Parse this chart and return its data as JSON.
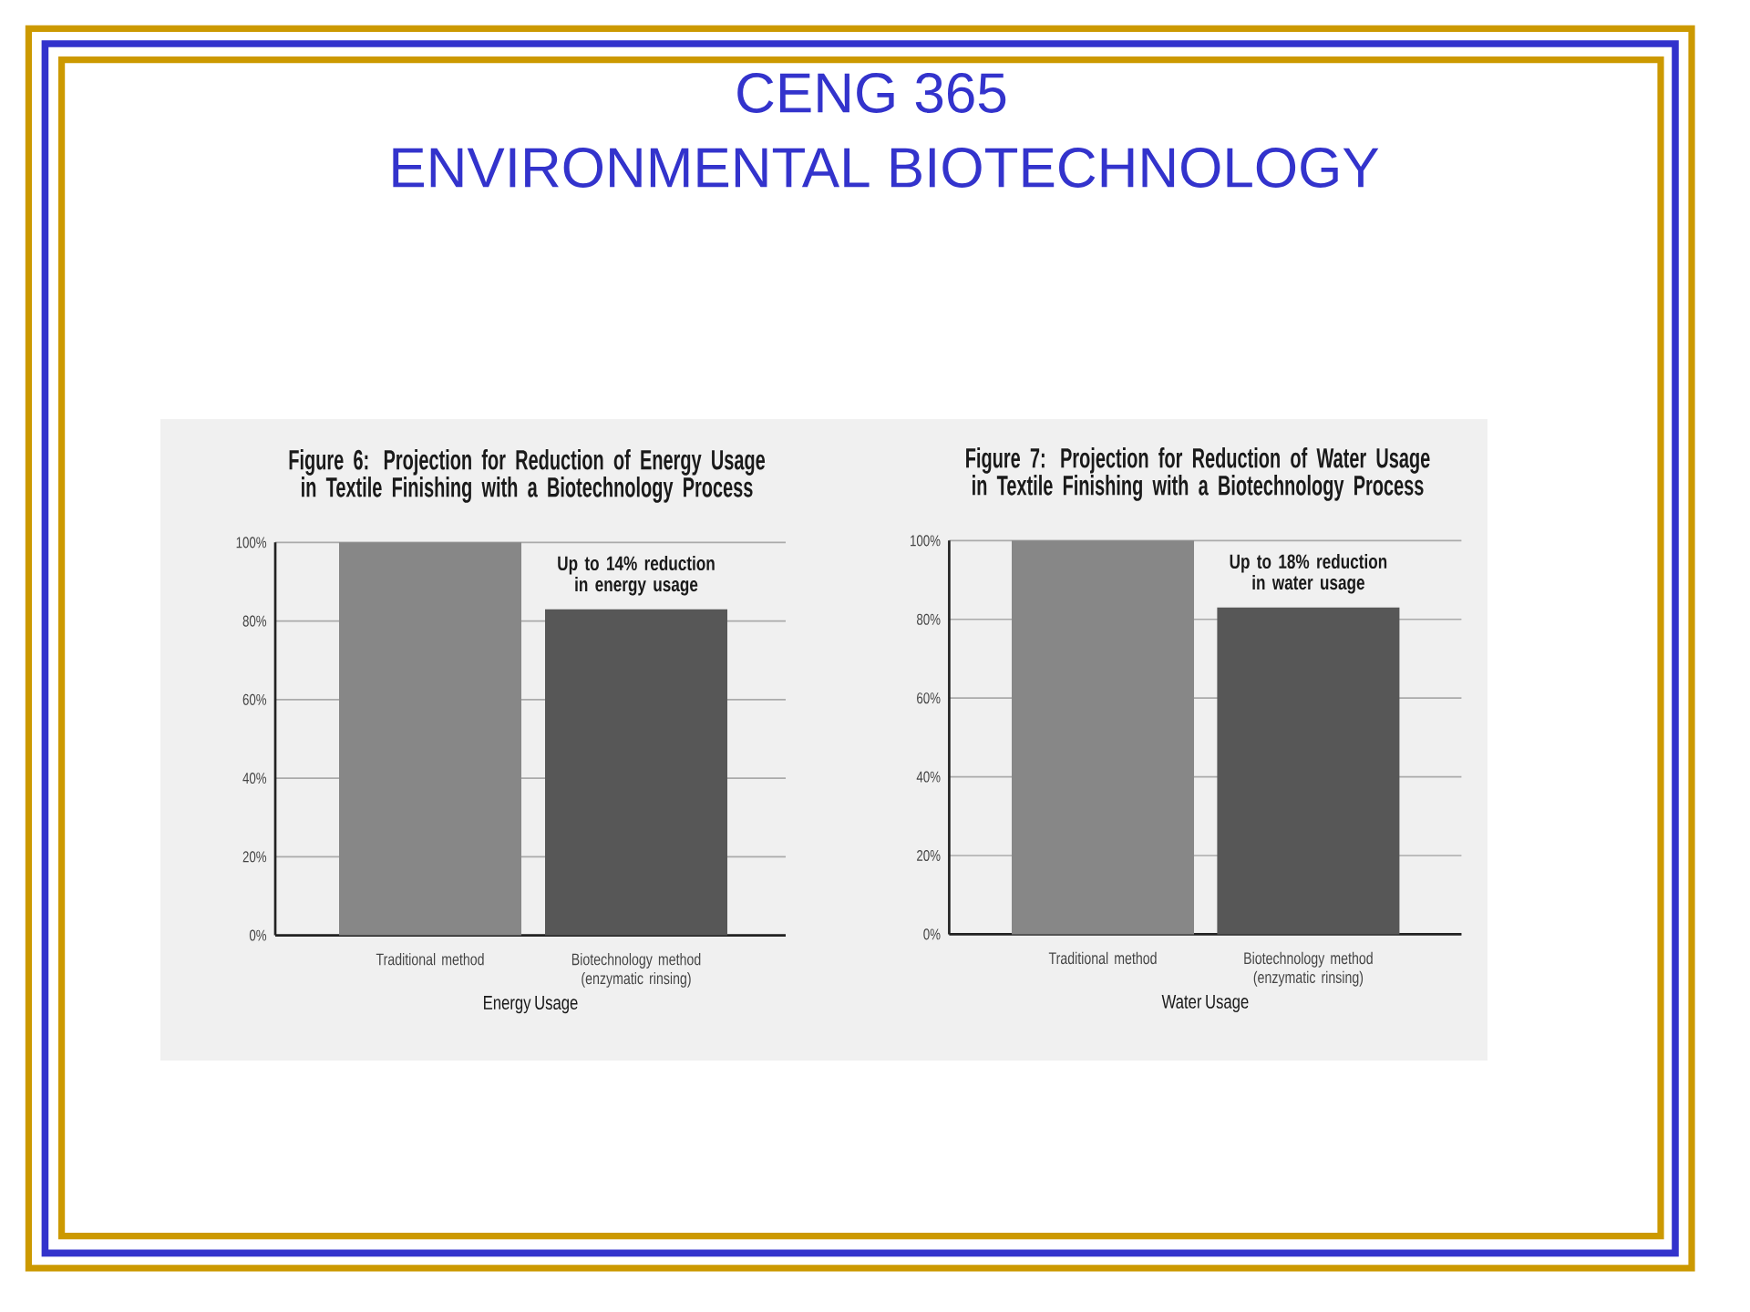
{
  "chart_data": [
    {
      "type": "other",
      "title": "CENG 365",
      "subtitle": "ENVIRONMENTAL BIOTECHNOLOGY"
    },
    {
      "type": "bar",
      "title": "Figure 6: Projection for Reduction of Energy Usage in Textile Finishing with a Biotechnology Process",
      "categories": [
        "Traditional method",
        "Biotechnology method (enzymatic rinsing)"
      ],
      "values": [
        100,
        83
      ],
      "colors": [
        "#878787",
        "#575757"
      ],
      "xlabel": "Energy Usage",
      "ylim": [
        0,
        100
      ],
      "yticks": [
        {
          "value": 0,
          "label": "0%"
        },
        {
          "value": 20,
          "label": "20%"
        },
        {
          "value": 40,
          "label": "40%"
        },
        {
          "value": 60,
          "label": "60%"
        },
        {
          "value": 80,
          "label": "80%"
        },
        {
          "value": 100,
          "label": "100%"
        }
      ],
      "grid": "y",
      "annotations": [
        "Up to 14% reduction in energy usage"
      ]
    },
    {
      "type": "bar",
      "title": "Figure 7: Projection for Reduction of Water Usage in Textile Finishing with a Biotechnology Process",
      "categories": [
        "Traditional method",
        "Biotechnology method (enzymatic rinsing)"
      ],
      "values": [
        100,
        83
      ],
      "colors": [
        "#878787",
        "#575757"
      ],
      "xlabel": "Water Usage",
      "ylim": [
        0,
        100
      ],
      "yticks": [
        {
          "value": 0,
          "label": "0%"
        },
        {
          "value": 20,
          "label": "20%"
        },
        {
          "value": 40,
          "label": "40%"
        },
        {
          "value": 60,
          "label": "60%"
        },
        {
          "value": 80,
          "label": "80%"
        },
        {
          "value": 100,
          "label": "100%"
        }
      ],
      "grid": "y",
      "annotations": [
        "Up to 18% reduction in water usage"
      ]
    }
  ]
}
